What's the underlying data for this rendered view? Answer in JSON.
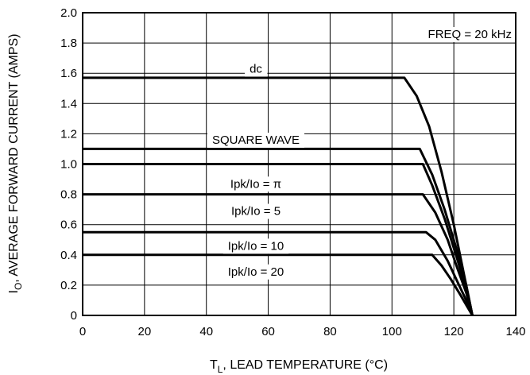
{
  "chart_data": {
    "type": "line",
    "xlabel_main": "T",
    "xlabel_sub": "L",
    "xlabel_rest": ", LEAD TEMPERATURE (°C)",
    "ylabel_main": "I",
    "ylabel_sub": "O",
    "ylabel_rest": ", AVERAGE FORWARD CURRENT (AMPS)",
    "xlim": [
      0,
      140
    ],
    "ylim": [
      0,
      2.0
    ],
    "x_ticks": [
      0,
      20,
      40,
      60,
      80,
      100,
      120,
      140
    ],
    "x_tick_labels": [
      "0",
      "20",
      "40",
      "60",
      "80",
      "100",
      "120",
      "140"
    ],
    "y_ticks": [
      0,
      0.2,
      0.4,
      0.6,
      0.8,
      1.0,
      1.2,
      1.4,
      1.6,
      1.8,
      2.0
    ],
    "y_tick_labels": [
      "0",
      "0.2",
      "0.4",
      "0.6",
      "0.8",
      "1.0",
      "1.2",
      "1.4",
      "1.6",
      "1.8",
      "2.0"
    ],
    "grid": true,
    "annotation": "FREQ = 20 kHz",
    "series": [
      {
        "label": "dc",
        "label_at": [
          56,
          1.63
        ],
        "points": [
          [
            0,
            1.57
          ],
          [
            104,
            1.57
          ],
          [
            108,
            1.45
          ],
          [
            112,
            1.25
          ],
          [
            116,
            0.95
          ],
          [
            120,
            0.6
          ],
          [
            123,
            0.3
          ],
          [
            126,
            0
          ]
        ]
      },
      {
        "label": "SQUARE WAVE",
        "label_at": [
          56,
          1.16
        ],
        "points": [
          [
            0,
            1.1
          ],
          [
            109,
            1.1
          ],
          [
            113,
            0.93
          ],
          [
            117,
            0.7
          ],
          [
            121,
            0.43
          ],
          [
            124,
            0.2
          ],
          [
            126,
            0
          ]
        ]
      },
      {
        "label": "Ipk/Io = π",
        "label_at": [
          56,
          0.87
        ],
        "points": [
          [
            0,
            1.0
          ],
          [
            110,
            1.0
          ],
          [
            113,
            0.86
          ],
          [
            117,
            0.64
          ],
          [
            121,
            0.38
          ],
          [
            124,
            0.17
          ],
          [
            126,
            0
          ]
        ]
      },
      {
        "label": "Ipk/Io = 5",
        "label_at": [
          56,
          0.69
        ],
        "points": [
          [
            0,
            0.8
          ],
          [
            110,
            0.8
          ],
          [
            114,
            0.68
          ],
          [
            118,
            0.5
          ],
          [
            121,
            0.32
          ],
          [
            124,
            0.15
          ],
          [
            126,
            0
          ]
        ]
      },
      {
        "label": "Ipk/Io = 10",
        "label_at": [
          56,
          0.46
        ],
        "points": [
          [
            0,
            0.55
          ],
          [
            111,
            0.55
          ],
          [
            114,
            0.5
          ],
          [
            118,
            0.36
          ],
          [
            121,
            0.23
          ],
          [
            124,
            0.1
          ],
          [
            126,
            0
          ]
        ]
      },
      {
        "label": "Ipk/Io = 20",
        "label_at": [
          56,
          0.29
        ],
        "points": [
          [
            0,
            0.4
          ],
          [
            113,
            0.4
          ],
          [
            116,
            0.33
          ],
          [
            119,
            0.24
          ],
          [
            122,
            0.14
          ],
          [
            124,
            0.07
          ],
          [
            126,
            0
          ]
        ]
      }
    ]
  }
}
